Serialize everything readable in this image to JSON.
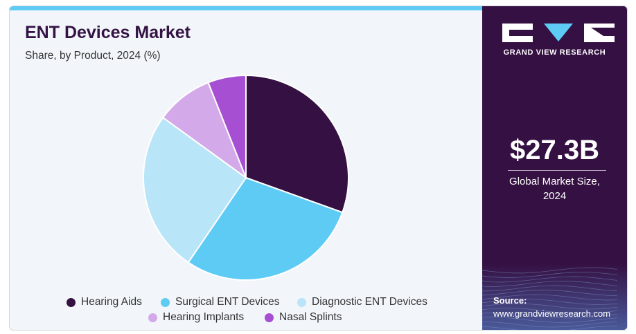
{
  "header": {
    "title": "ENT Devices Market",
    "subtitle": "Share, by Product, 2024 (%)"
  },
  "chart_data": {
    "type": "pie",
    "title": "ENT Devices Market",
    "subtitle": "Share, by Product, 2024 (%)",
    "categories": [
      "Hearing Aids",
      "Surgical ENT Devices",
      "Diagnostic ENT Devices",
      "Hearing Implants",
      "Nasal Splints"
    ],
    "values": [
      30.5,
      29.0,
      25.5,
      9.0,
      6.0
    ],
    "colors": [
      "#351042",
      "#5ecbf5",
      "#b9e5f8",
      "#d4a9e9",
      "#a74fd3"
    ],
    "legend_position": "bottom"
  },
  "sidebar": {
    "brand": "GRAND VIEW RESEARCH",
    "market_size": "$27.3B",
    "market_size_label_line1": "Global Market Size,",
    "market_size_label_line2": "2024",
    "source_label": "Source:",
    "source_url": "www.grandviewresearch.com",
    "background_color": "#351042"
  }
}
